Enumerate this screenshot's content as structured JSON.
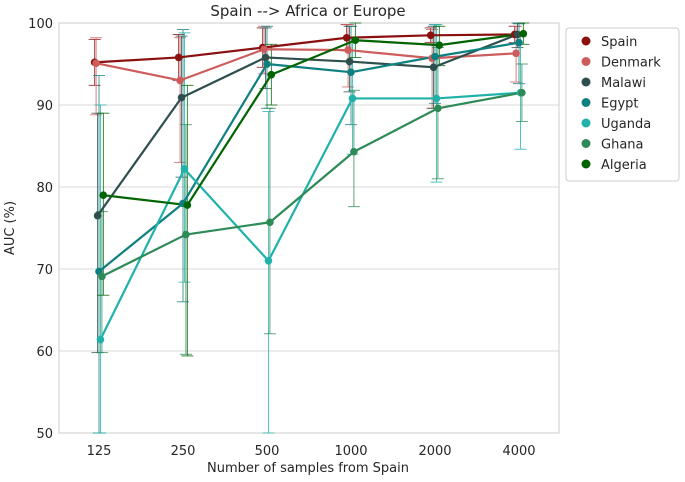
{
  "chart_data": {
    "type": "line",
    "title": "Spain --> Africa or Europe",
    "xlabel": "Number of samples from Spain",
    "ylabel": "AUC (%)",
    "categories": [
      "125",
      "250",
      "500",
      "1000",
      "2000",
      "4000"
    ],
    "ylim": [
      50,
      100
    ],
    "yticks": [
      50,
      60,
      70,
      80,
      90,
      100
    ],
    "grid": "horizontal",
    "legend_position": "outside-right",
    "series": [
      {
        "name": "Spain",
        "color": "#8b1010",
        "values": [
          95.2,
          95.8,
          97.0,
          98.2,
          98.5,
          98.6
        ],
        "err_low": [
          92.4,
          93.0,
          94.6,
          96.6,
          97.6,
          97.6
        ],
        "err_high": [
          98.0,
          98.6,
          99.4,
          99.8,
          99.4,
          99.6
        ]
      },
      {
        "name": "Denmark",
        "color": "#cd5c5c",
        "values": [
          95.1,
          93.0,
          96.8,
          96.7,
          95.7,
          96.3
        ],
        "err_low": [
          88.8,
          83.0,
          93.8,
          92.2,
          89.6,
          92.8
        ],
        "err_high": [
          98.2,
          98.2,
          99.6,
          99.8,
          99.2,
          99.6
        ]
      },
      {
        "name": "Malawi",
        "color": "#2f4f4f",
        "values": [
          76.5,
          90.9,
          95.8,
          95.3,
          94.6,
          98.6
        ],
        "err_low": [
          59.8,
          81.2,
          92.0,
          91.6,
          89.6,
          97.0
        ],
        "err_high": [
          89.0,
          98.4,
          99.4,
          99.6,
          99.6,
          100.0
        ]
      },
      {
        "name": "Egypt",
        "color": "#0e8080",
        "values": [
          69.7,
          78.0,
          95.0,
          94.0,
          95.9,
          97.6
        ],
        "err_low": [
          50.0,
          66.0,
          89.6,
          87.6,
          90.2,
          92.6
        ],
        "err_high": [
          93.6,
          99.2,
          99.6,
          99.6,
          99.8,
          99.9
        ]
      },
      {
        "name": "Uganda",
        "color": "#20b2aa",
        "values": [
          61.4,
          82.2,
          71.0,
          90.8,
          90.8,
          91.5
        ],
        "err_low": [
          50.0,
          68.4,
          50.0,
          84.0,
          80.6,
          84.6
        ],
        "err_high": [
          90.0,
          98.8,
          89.2,
          98.0,
          99.8,
          98.4
        ]
      },
      {
        "name": "Ghana",
        "color": "#2e8b57",
        "values": [
          69.1,
          74.2,
          75.7,
          84.3,
          89.6,
          91.5
        ],
        "err_low": [
          59.8,
          59.6,
          62.1,
          77.6,
          81.0,
          88.0
        ],
        "err_high": [
          77.0,
          87.6,
          89.6,
          91.8,
          97.0,
          95.0
        ]
      },
      {
        "name": "Algeria",
        "color": "#006400",
        "values": [
          79.0,
          77.8,
          93.7,
          97.9,
          97.3,
          98.7
        ],
        "err_low": [
          66.8,
          59.4,
          90.0,
          95.8,
          94.8,
          97.4
        ],
        "err_high": [
          89.0,
          92.4,
          97.4,
          100.0,
          99.6,
          100.0
        ]
      }
    ]
  }
}
